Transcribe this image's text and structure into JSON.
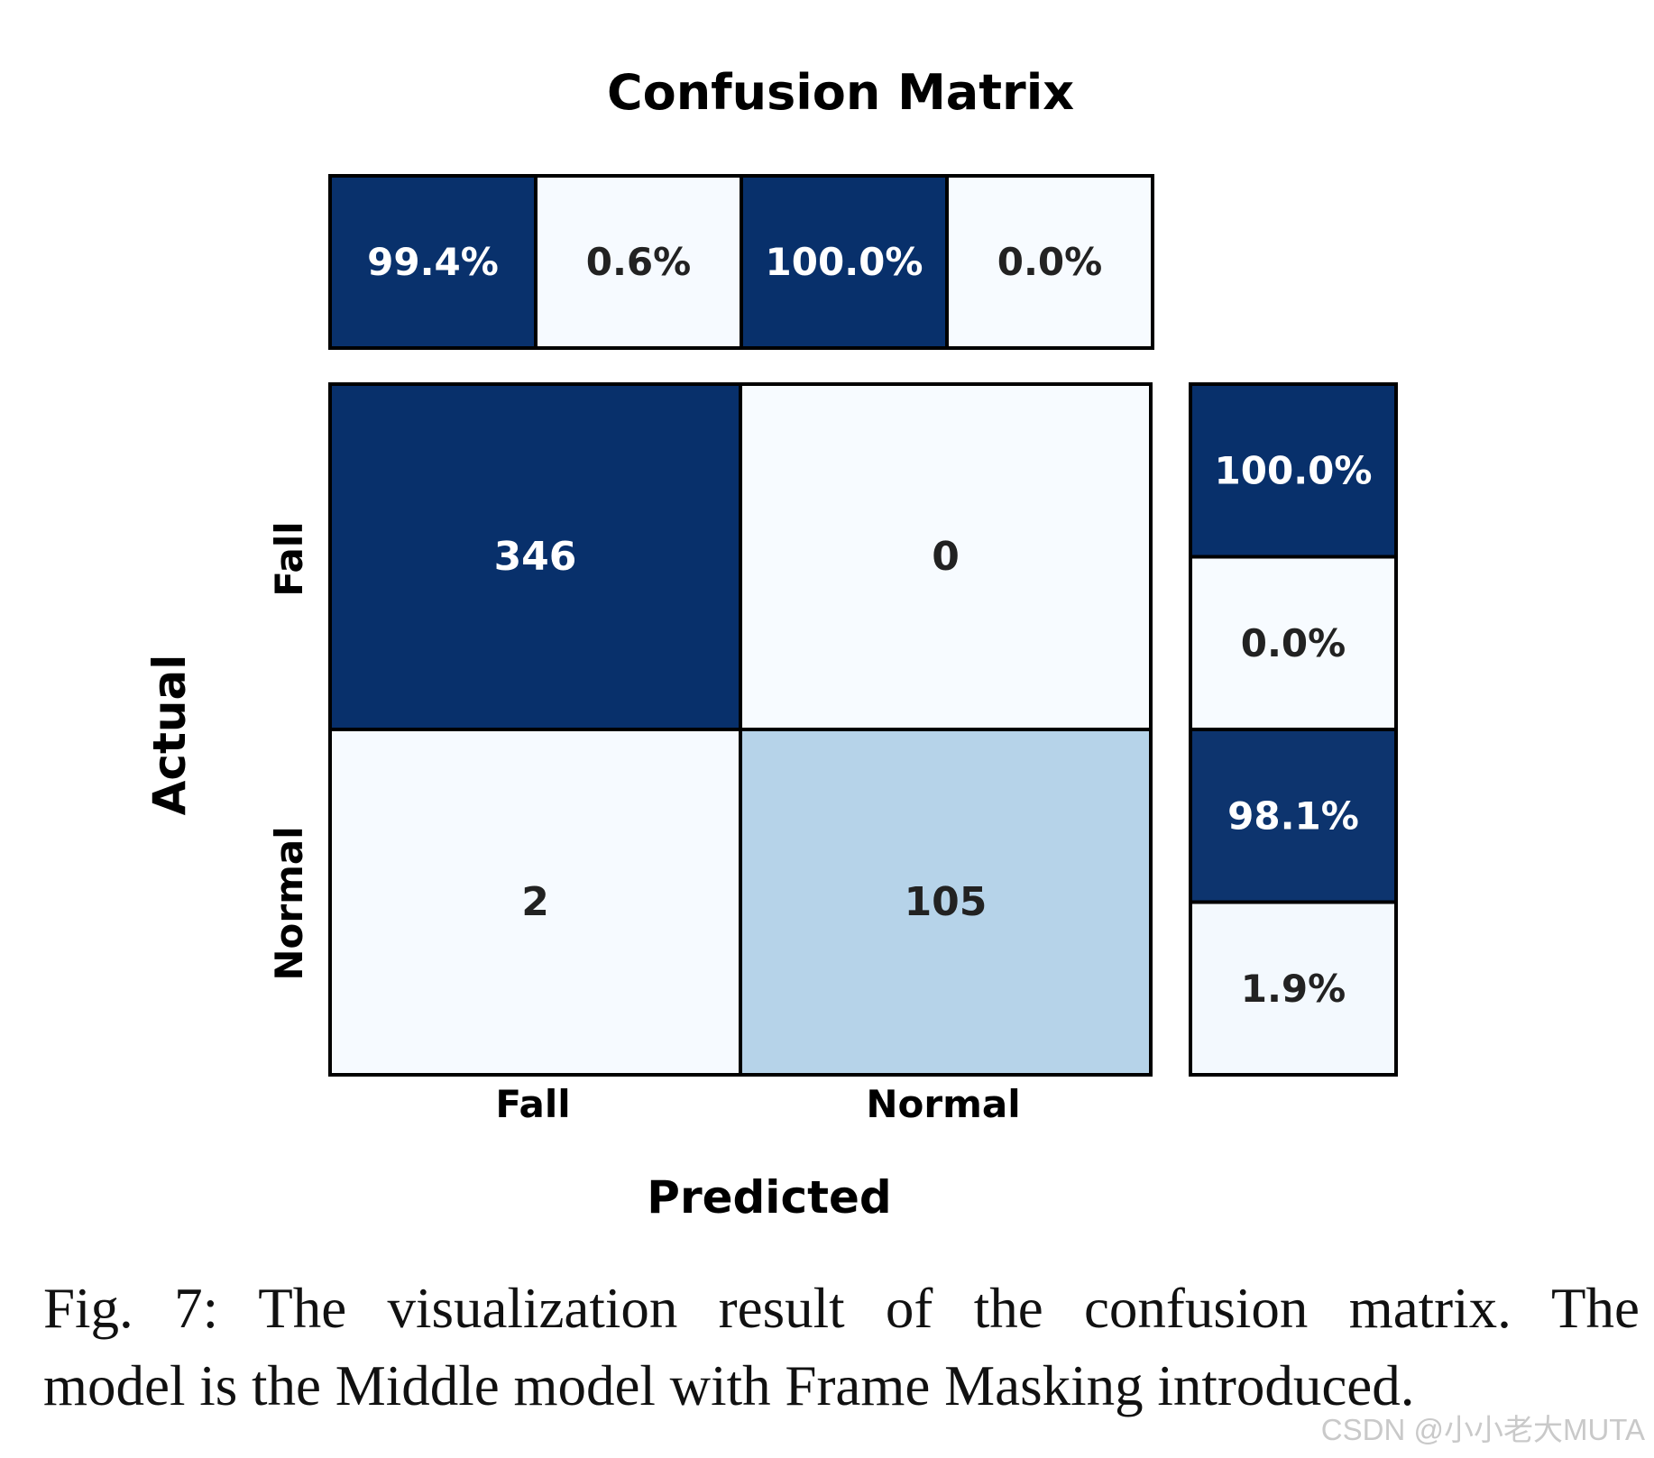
{
  "chart_data": {
    "type": "heatmap",
    "title": "Confusion Matrix",
    "xlabel": "Predicted",
    "ylabel": "Actual",
    "x_categories": [
      "Fall",
      "Normal"
    ],
    "y_categories": [
      "Fall",
      "Normal"
    ],
    "matrix": [
      [
        346,
        0
      ],
      [
        2,
        105
      ]
    ],
    "top_percentages": [
      {
        "label": "99.4%",
        "value": 99.4
      },
      {
        "label": "0.6%",
        "value": 0.6
      },
      {
        "label": "100.0%",
        "value": 100.0
      },
      {
        "label": "0.0%",
        "value": 0.0
      }
    ],
    "right_percentages": [
      {
        "label": "100.0%",
        "value": 100.0
      },
      {
        "label": "0.0%",
        "value": 0.0
      },
      {
        "label": "98.1%",
        "value": 98.1
      },
      {
        "label": "1.9%",
        "value": 1.9
      }
    ],
    "colormap": {
      "low": "#f7fbff",
      "mid": "#b7d4ea",
      "high": "#08306b"
    },
    "text_colors": {
      "on_dark": "#ffffff",
      "on_light": "#222222"
    }
  },
  "caption": {
    "line1": "Fig. 7: The visualization result of the confusion matrix. The",
    "line2": "model is the Middle model with Frame Masking introduced."
  },
  "watermark": "CSDN @小小老大MUTA"
}
